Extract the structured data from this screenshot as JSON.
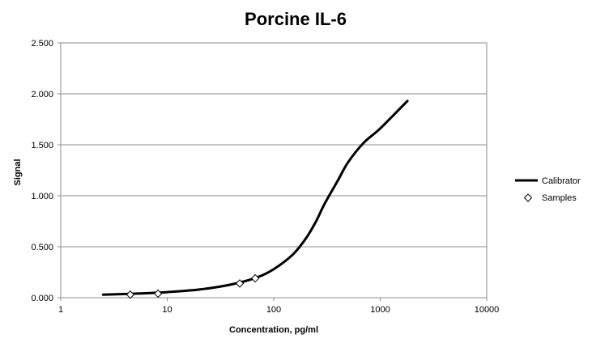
{
  "chart_data": {
    "type": "line",
    "title": "Porcine IL-6",
    "xlabel": "Concentration, pg/ml",
    "ylabel": "Signal",
    "x_scale": "log",
    "xlim": [
      1,
      10000
    ],
    "ylim": [
      0,
      2.5
    ],
    "x_ticks": [
      1,
      10,
      100,
      1000,
      10000
    ],
    "x_tick_labels": [
      "1",
      "10",
      "100",
      "1000",
      "10000"
    ],
    "y_ticks": [
      0,
      0.5,
      1,
      1.5,
      2,
      2.5
    ],
    "y_tick_labels": [
      "0.000",
      "0.500",
      "1.000",
      "1.500",
      "2.000",
      "2.500"
    ],
    "grid": "horizontal major gridlines",
    "legend_position": "right",
    "series": [
      {
        "name": "Calibrator",
        "kind": "line",
        "color": "#000000",
        "x": [
          2.5,
          5,
          10,
          20,
          40,
          70,
          100,
          150,
          200,
          250,
          300,
          400,
          500,
          700,
          1000,
          1800
        ],
        "y": [
          0.03,
          0.04,
          0.055,
          0.08,
          0.13,
          0.2,
          0.28,
          0.42,
          0.58,
          0.75,
          0.92,
          1.15,
          1.33,
          1.52,
          1.66,
          1.93
        ]
      },
      {
        "name": "Samples",
        "kind": "scatter",
        "marker": "diamond-open",
        "color": "#000000",
        "x": [
          4.5,
          8.2,
          48,
          67
        ],
        "y": [
          0.03,
          0.04,
          0.14,
          0.19
        ]
      }
    ]
  }
}
